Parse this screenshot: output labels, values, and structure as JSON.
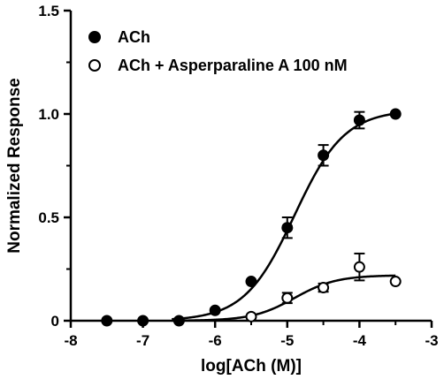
{
  "chart_data": {
    "type": "scatter",
    "title": "",
    "xlabel": "log[ACh (M)]",
    "ylabel": "Normalized Response",
    "xlim": [
      -8,
      -3
    ],
    "ylim": [
      0,
      1.5
    ],
    "x_ticks": [
      "-8",
      "-7",
      "-6",
      "-5",
      "-4",
      "-3"
    ],
    "y_ticks": [
      "0",
      "0.5",
      "1.0",
      "1.5"
    ],
    "legend_position": "top-left",
    "series": [
      {
        "name": "ACh",
        "marker": "filled-circle",
        "points": [
          {
            "x": -7.5,
            "y": 0.0,
            "err": 0
          },
          {
            "x": -7.0,
            "y": 0.0,
            "err": 0
          },
          {
            "x": -6.5,
            "y": 0.0,
            "err": 0
          },
          {
            "x": -6.0,
            "y": 0.05,
            "err": 0
          },
          {
            "x": -5.5,
            "y": 0.19,
            "err": 0
          },
          {
            "x": -5.0,
            "y": 0.45,
            "err": 0.05
          },
          {
            "x": -4.5,
            "y": 0.8,
            "err": 0.05
          },
          {
            "x": -4.0,
            "y": 0.97,
            "err": 0.04
          },
          {
            "x": -3.5,
            "y": 1.0,
            "err": 0
          }
        ],
        "fit": {
          "bottom": 0.0,
          "top": 1.02,
          "log_ec50": -4.9,
          "hill": 1.25
        }
      },
      {
        "name": "ACh + Asperparaline A 100 nM",
        "marker": "open-circle",
        "points": [
          {
            "x": -5.5,
            "y": 0.02,
            "err": 0
          },
          {
            "x": -5.0,
            "y": 0.11,
            "err": 0.025
          },
          {
            "x": -4.5,
            "y": 0.16,
            "err": 0.02
          },
          {
            "x": -4.0,
            "y": 0.26,
            "err": 0.065
          },
          {
            "x": -3.5,
            "y": 0.19,
            "err": 0
          }
        ],
        "fit": {
          "bottom": 0.0,
          "top": 0.22,
          "log_ec50": -4.9,
          "hill": 1.5
        }
      }
    ]
  }
}
